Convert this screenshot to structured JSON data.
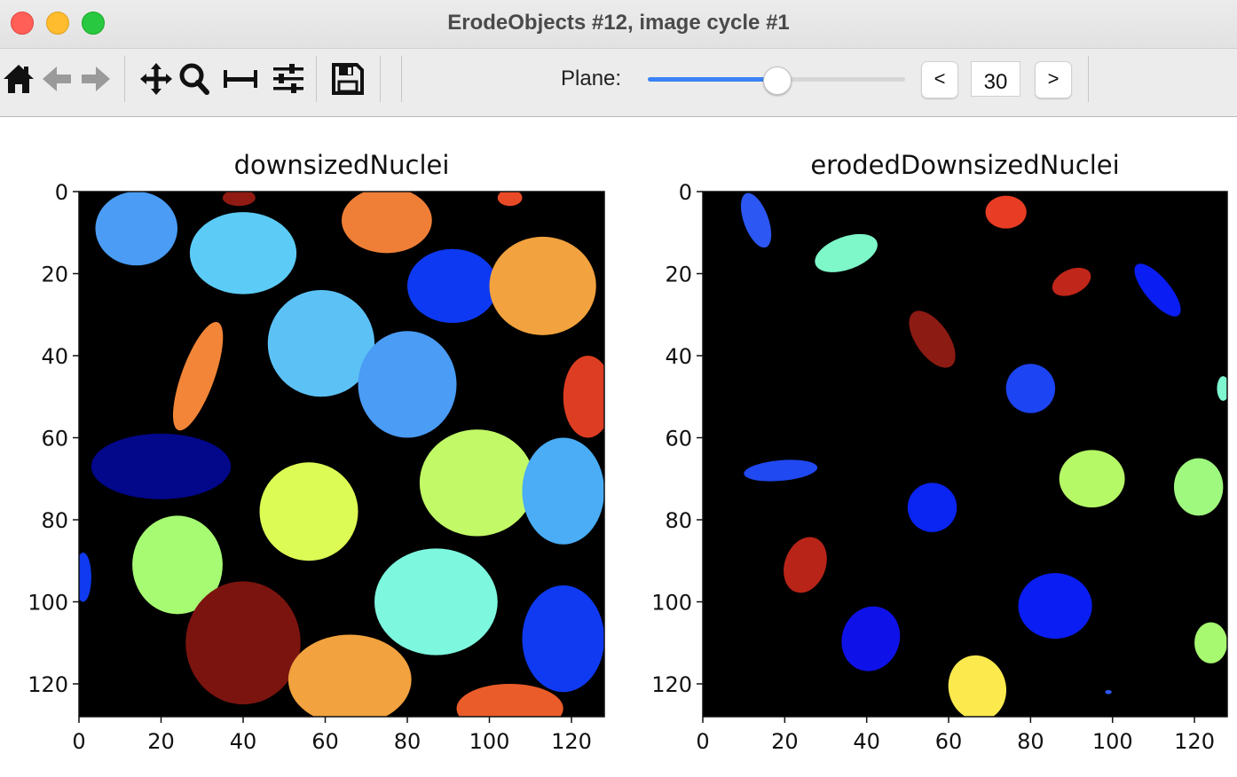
{
  "window": {
    "title": "ErodeObjects #12, image cycle #1",
    "buttons": [
      "close",
      "minimize",
      "zoom"
    ]
  },
  "toolbar": {
    "tools": [
      "home-icon",
      "back-icon",
      "forward-icon",
      "pan-icon",
      "zoom-icon",
      "subplots-icon",
      "configure-icon",
      "save-icon"
    ],
    "plane_label": "Plane:",
    "plane_value": "30",
    "plane_fraction": 0.5,
    "prev_label": "<",
    "next_label": ">",
    "accent_color": "#3a82f6"
  },
  "plots": [
    {
      "title": "downsizedNuclei",
      "xticks": [
        "0",
        "20",
        "40",
        "60",
        "80",
        "100",
        "120"
      ],
      "yticks": [
        "0",
        "20",
        "40",
        "60",
        "80",
        "100",
        "120"
      ],
      "extent": 128,
      "colormap": "jet",
      "background": "#000000",
      "objects": [
        {
          "color": "#4a9cf5",
          "cx": 14,
          "cy": 9,
          "rx": 10,
          "ry": 9
        },
        {
          "color": "#911a12",
          "cx": 39,
          "cy": 1.5,
          "rx": 4,
          "ry": 2
        },
        {
          "color": "#ef7f37",
          "cx": 75,
          "cy": 7,
          "rx": 11,
          "ry": 8
        },
        {
          "color": "#e84a27",
          "cx": 105,
          "cy": 1.5,
          "rx": 3,
          "ry": 2
        },
        {
          "color": "#5cccf6",
          "cx": 40,
          "cy": 15,
          "rx": 13,
          "ry": 10
        },
        {
          "color": "#0e39f2",
          "cx": 91,
          "cy": 23,
          "rx": 11,
          "ry": 9
        },
        {
          "color": "#f2a23e",
          "cx": 113,
          "cy": 23,
          "rx": 13,
          "ry": 12
        },
        {
          "color": "#5cc2f6",
          "cx": 59,
          "cy": 37,
          "rx": 13,
          "ry": 13,
          "rot": 35
        },
        {
          "color": "#f28537",
          "cx": 29,
          "cy": 45,
          "rx": 4,
          "ry": 14,
          "rot": 20
        },
        {
          "color": "#4a9cf5",
          "cx": 80,
          "cy": 47,
          "rx": 12,
          "ry": 13
        },
        {
          "color": "#dd3d22",
          "cx": 124,
          "cy": 50,
          "rx": 6,
          "ry": 10
        },
        {
          "color": "#03078a",
          "cx": 20,
          "cy": 67,
          "rx": 17,
          "ry": 8
        },
        {
          "color": "#c2f967",
          "cx": 97,
          "cy": 71,
          "rx": 14,
          "ry": 13
        },
        {
          "color": "#4aadf5",
          "cx": 118,
          "cy": 73,
          "rx": 10,
          "ry": 13
        },
        {
          "color": "#dcfb55",
          "cx": 56,
          "cy": 78,
          "rx": 12,
          "ry": 12
        },
        {
          "color": "#a7fb73",
          "cx": 24,
          "cy": 91,
          "rx": 11,
          "ry": 12
        },
        {
          "color": "#0f3af2",
          "cx": 1,
          "cy": 94,
          "rx": 2,
          "ry": 6
        },
        {
          "color": "#7ef7df",
          "cx": 87,
          "cy": 100,
          "rx": 15,
          "ry": 13
        },
        {
          "color": "#7b140f",
          "cx": 40,
          "cy": 110,
          "rx": 14,
          "ry": 15
        },
        {
          "color": "#f2a23e",
          "cx": 66,
          "cy": 119,
          "rx": 15,
          "ry": 11
        },
        {
          "color": "#0f3af2",
          "cx": 118,
          "cy": 109,
          "rx": 10,
          "ry": 13
        },
        {
          "color": "#ea5c2a",
          "cx": 105,
          "cy": 126,
          "rx": 13,
          "ry": 6
        }
      ]
    },
    {
      "title": "erodedDownsizedNuclei",
      "xticks": [
        "0",
        "20",
        "40",
        "60",
        "80",
        "100",
        "120"
      ],
      "yticks": [
        "0",
        "20",
        "40",
        "60",
        "80",
        "100",
        "120"
      ],
      "extent": 128,
      "colormap": "jet",
      "background": "#000000",
      "objects": [
        {
          "color": "#2c57f2",
          "cx": 13,
          "cy": 7,
          "rx": 3,
          "ry": 7,
          "rot": -20
        },
        {
          "color": "#e83c24",
          "cx": 74,
          "cy": 5,
          "rx": 5,
          "ry": 4
        },
        {
          "color": "#7ef7c9",
          "cx": 35,
          "cy": 15,
          "rx": 8,
          "ry": 4,
          "rot": -20
        },
        {
          "color": "#c1261a",
          "cx": 90,
          "cy": 22,
          "rx": 5,
          "ry": 3,
          "rot": -25
        },
        {
          "color": "#0a1df2",
          "cx": 111,
          "cy": 24,
          "rx": 3,
          "ry": 8,
          "rot": -40
        },
        {
          "color": "#8c1b13",
          "cx": 56,
          "cy": 36,
          "rx": 4,
          "ry": 8,
          "rot": -35
        },
        {
          "color": "#1d44f2",
          "cx": 80,
          "cy": 48,
          "rx": 6,
          "ry": 6
        },
        {
          "color": "#7ef7d0",
          "cx": 127,
          "cy": 48,
          "rx": 1.5,
          "ry": 3
        },
        {
          "color": "#2049f2",
          "cx": 19,
          "cy": 68,
          "rx": 9,
          "ry": 2.5,
          "rot": -5
        },
        {
          "color": "#b6f967",
          "cx": 95,
          "cy": 70,
          "rx": 8,
          "ry": 7
        },
        {
          "color": "#9ff97e",
          "cx": 121,
          "cy": 72,
          "rx": 6,
          "ry": 7
        },
        {
          "color": "#0a24f2",
          "cx": 56,
          "cy": 77,
          "rx": 6,
          "ry": 6
        },
        {
          "color": "#b82518",
          "cx": 25,
          "cy": 91,
          "rx": 5,
          "ry": 7,
          "rot": 20
        },
        {
          "color": "#0a1df2",
          "cx": 86,
          "cy": 101,
          "rx": 9,
          "ry": 8
        },
        {
          "color": "#0f12e8",
          "cx": 41,
          "cy": 109,
          "rx": 7,
          "ry": 8,
          "rot": 20
        },
        {
          "color": "#a7f970",
          "cx": 124,
          "cy": 110,
          "rx": 4,
          "ry": 5
        },
        {
          "color": "#fbe94e",
          "cx": 67,
          "cy": 121,
          "rx": 7,
          "ry": 8,
          "rot": -15
        },
        {
          "color": "#2c57f2",
          "cx": 99,
          "cy": 122,
          "rx": 0.8,
          "ry": 0.5
        }
      ]
    }
  ]
}
